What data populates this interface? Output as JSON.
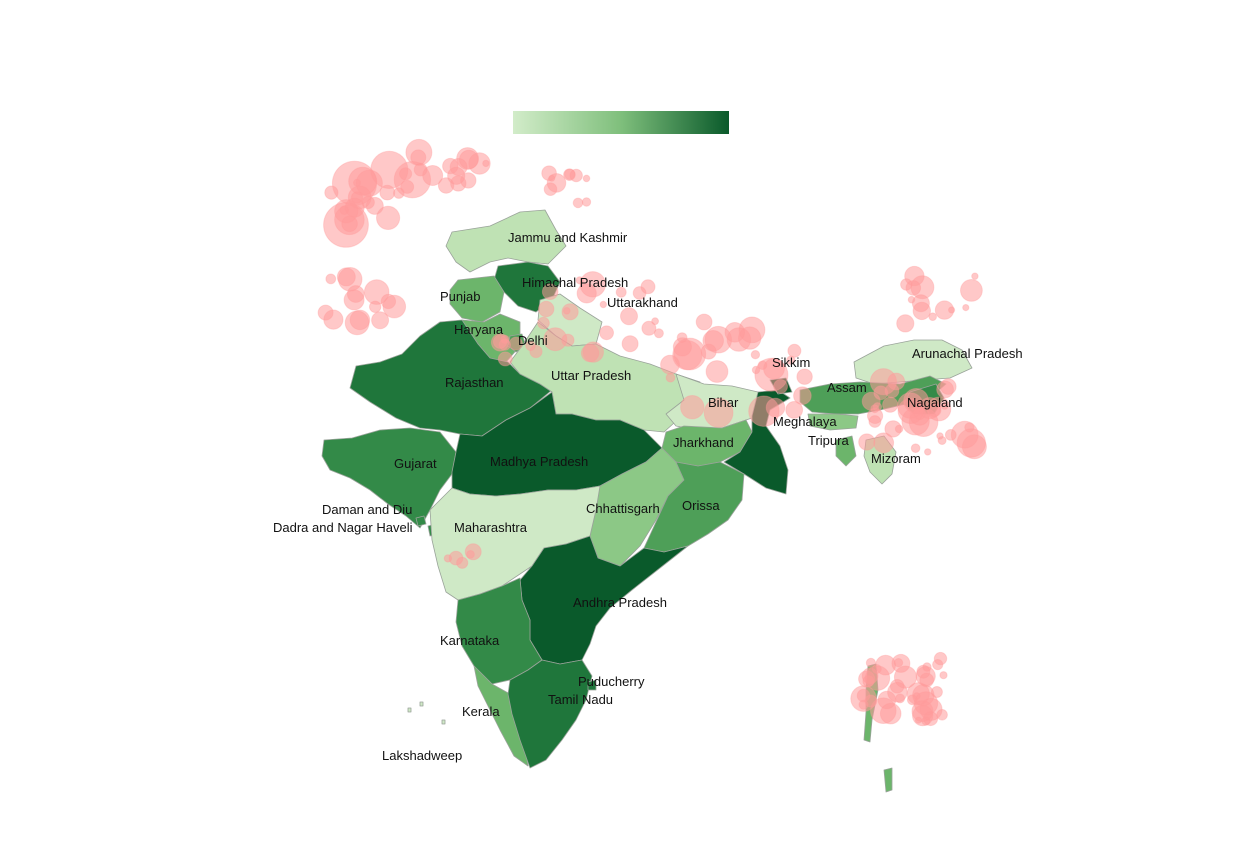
{
  "colors": {
    "scale": [
      "#cfe9c6",
      "#bfe2b4",
      "#a9d69c",
      "#8cc886",
      "#6cb56b",
      "#4e9f58",
      "#338a48",
      "#1f763b",
      "#0a5a2b"
    ],
    "bubble": "#ff9a9a"
  },
  "legend": {
    "type": "sequential-green-colorbar",
    "position": "top-center"
  },
  "states": [
    {
      "id": "jammu-and-kashmir",
      "name": "Jammu and Kashmir",
      "level": 1
    },
    {
      "id": "himachal-pradesh",
      "name": "Himachal Pradesh",
      "level": 7
    },
    {
      "id": "punjab",
      "name": "Punjab",
      "level": 4
    },
    {
      "id": "uttarakhand",
      "name": "Uttarakhand",
      "level": 0
    },
    {
      "id": "haryana",
      "name": "Haryana",
      "level": 4
    },
    {
      "id": "delhi",
      "name": "Delhi",
      "level": 5
    },
    {
      "id": "rajasthan",
      "name": "Rajasthan",
      "level": 7
    },
    {
      "id": "uttar-pradesh",
      "name": "Uttar Pradesh",
      "level": 1
    },
    {
      "id": "bihar",
      "name": "Bihar",
      "level": 0
    },
    {
      "id": "sikkim",
      "name": "Sikkim",
      "level": 8
    },
    {
      "id": "arunachal-pradesh",
      "name": "Arunachal Pradesh",
      "level": 0
    },
    {
      "id": "assam",
      "name": "Assam",
      "level": 5
    },
    {
      "id": "nagaland",
      "name": "Nagaland",
      "level": 6
    },
    {
      "id": "meghalaya",
      "name": "Meghalaya",
      "level": 3
    },
    {
      "id": "tripura",
      "name": "Tripura",
      "level": 4
    },
    {
      "id": "mizoram",
      "name": "Mizoram",
      "level": 1
    },
    {
      "id": "gujarat",
      "name": "Gujarat",
      "level": 6
    },
    {
      "id": "madhya-pradesh",
      "name": "Madhya Pradesh",
      "level": 8
    },
    {
      "id": "jharkhand",
      "name": "Jharkhand",
      "level": 4
    },
    {
      "id": "west-bengal",
      "name": "",
      "level": 8
    },
    {
      "id": "daman-and-diu",
      "name": "Daman and Diu",
      "level": 6
    },
    {
      "id": "dadra-and-nagar-haveli",
      "name": "Dadra and Nagar Haveli",
      "level": 6
    },
    {
      "id": "maharashtra",
      "name": "Maharashtra",
      "level": 0
    },
    {
      "id": "chhattisgarh",
      "name": "Chhattisgarh",
      "level": 3
    },
    {
      "id": "orissa",
      "name": "Orissa",
      "level": 5
    },
    {
      "id": "andhra-pradesh",
      "name": "Andhra Pradesh",
      "level": 8
    },
    {
      "id": "karnataka",
      "name": "Karnataka",
      "level": 6
    },
    {
      "id": "puducherry",
      "name": "Puducherry",
      "level": 7
    },
    {
      "id": "tamil-nadu",
      "name": "Tamil Nadu",
      "level": 7
    },
    {
      "id": "kerala",
      "name": "Kerala",
      "level": 4
    },
    {
      "id": "lakshadweep",
      "name": "Lakshadweep",
      "level": 0
    },
    {
      "id": "andaman-and-nicobar",
      "name": "",
      "level": 4
    }
  ]
}
